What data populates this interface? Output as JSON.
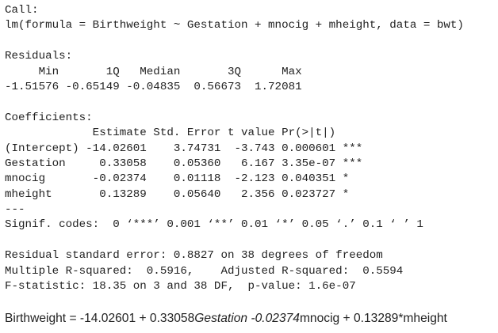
{
  "console": {
    "blocks": [
      [
        "Call:",
        "lm(formula = Birthweight ~ Gestation + mnocig + mheight, data = bwt)"
      ],
      [
        "Residuals:",
        "     Min       1Q   Median       3Q      Max",
        "-1.51576 -0.65149 -0.04835  0.56673  1.72081"
      ],
      [
        "Coefficients:",
        "             Estimate Std. Error t value Pr(>|t|)",
        "(Intercept) -14.02601    3.74731  -3.743 0.000601 ***",
        "Gestation     0.33058    0.05360   6.167 3.35e-07 ***",
        "mnocig       -0.02374    0.01118  -2.123 0.040351 *",
        "mheight       0.13289    0.05640   2.356 0.023727 *",
        "---",
        "Signif. codes:  0 ‘***’ 0.001 ‘**’ 0.01 ‘*’ 0.05 ‘.’ 0.1 ‘ ’ 1"
      ],
      [
        "Residual standard error: 0.8827 on 38 degrees of freedom",
        "Multiple R-squared:  0.5916,    Adjusted R-squared:  0.5594",
        "F-statistic: 18.35 on 3 and 38 DF,  p-value: 1.6e-07"
      ]
    ],
    "equation": [
      {
        "text": "Birthweight = -14.02601 + 0.33058",
        "italic": false
      },
      {
        "text": "Gestation -0.02374",
        "italic": true
      },
      {
        "text": "mnocig + 0.13289*mheight",
        "italic": false
      }
    ]
  }
}
